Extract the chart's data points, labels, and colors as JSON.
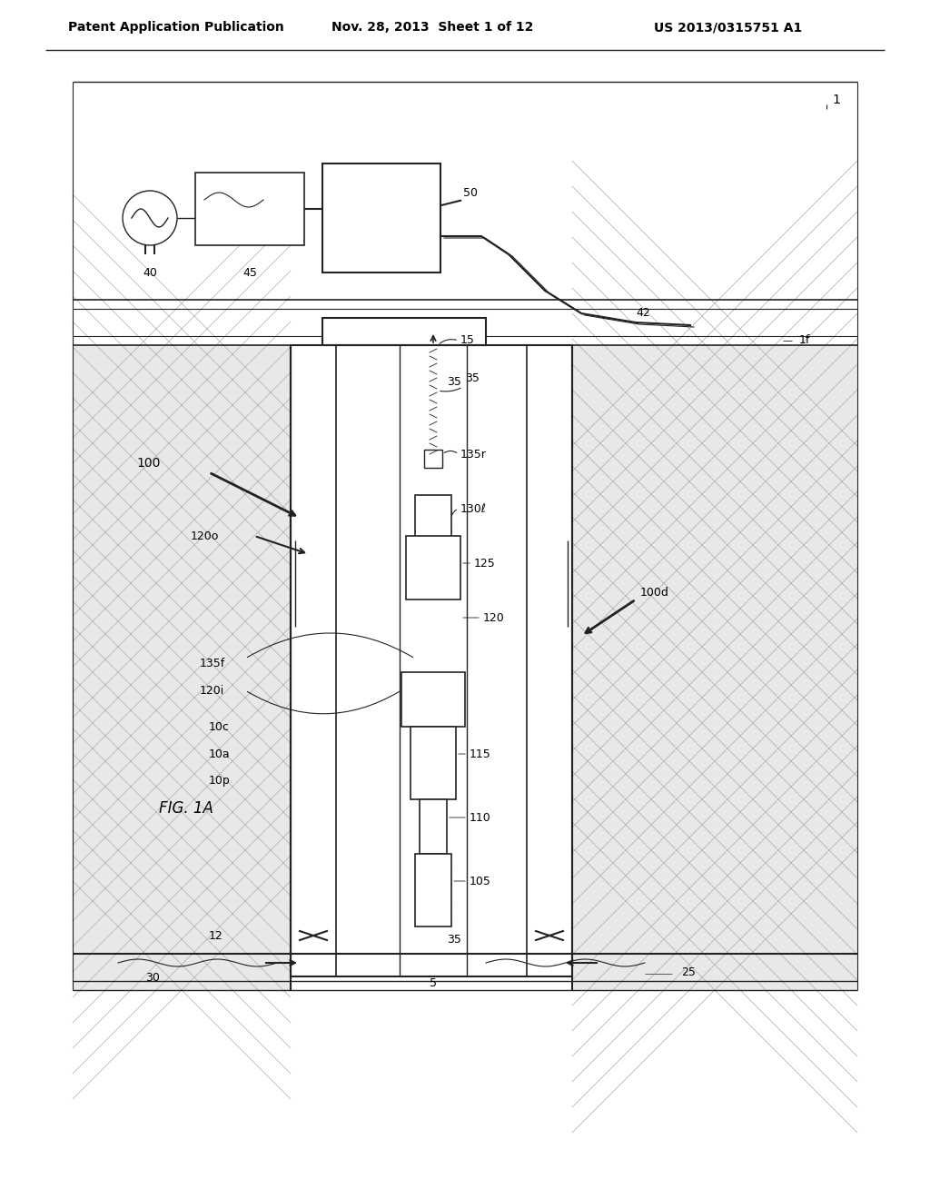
{
  "bg_color": "#ffffff",
  "header_text_left": "Patent Application Publication",
  "header_text_mid": "Nov. 28, 2013  Sheet 1 of 12",
  "header_text_right": "US 2013/0315751 A1",
  "fig_label": "FIG. 1A",
  "label_1": "1",
  "label_1f": "1f",
  "label_5": "5",
  "label_12": "12",
  "label_15": "15",
  "label_25": "25",
  "label_30": "30",
  "label_35a": "35",
  "label_35b": "35",
  "label_40": "40",
  "label_42": "42",
  "label_45": "45",
  "label_50": "50",
  "label_100": "100",
  "label_100d": "100d",
  "label_105": "105",
  "label_110": "110",
  "label_115": "115",
  "label_120": "120",
  "label_120i": "120i",
  "label_120o": "120o",
  "label_125": "125",
  "label_130l": "130ℓ",
  "label_135f": "135f",
  "label_135r": "135r",
  "line_color": "#222222",
  "hatch_color": "#888888",
  "ground_color": "#cccccc"
}
